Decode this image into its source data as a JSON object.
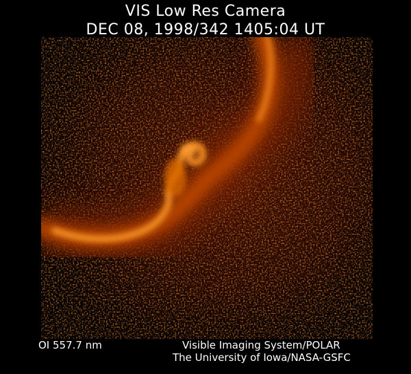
{
  "header": {
    "line1": "VIS Low Res Camera",
    "line2": "DEC 08, 1998/342 1405:04 UT"
  },
  "footer": {
    "filter": "OI  557.7 nm",
    "credit_line1": "Visible Imaging System/POLAR",
    "credit_line2": "The University of Iowa/NASA-GSFC"
  },
  "image": {
    "subject": "auroral oval",
    "palette": [
      "#000000",
      "#3a0a00",
      "#8a2400",
      "#d86000",
      "#ffa030"
    ]
  }
}
